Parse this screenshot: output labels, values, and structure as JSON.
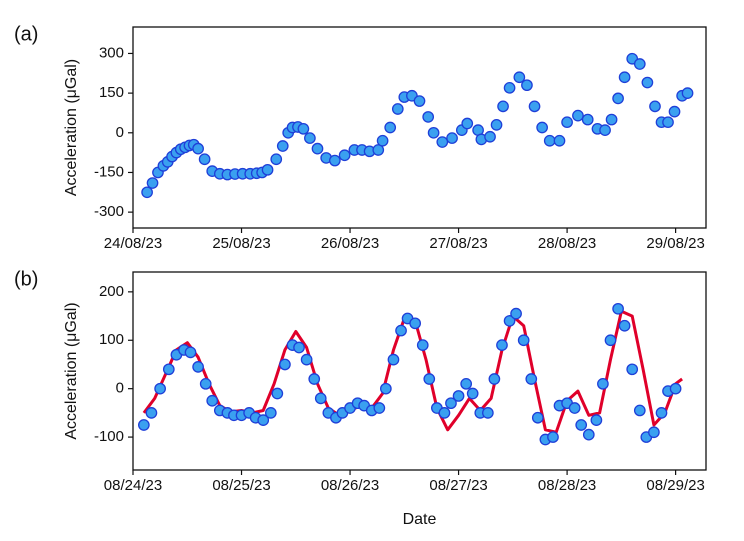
{
  "chart_data": [
    {
      "type": "scatter",
      "panel_label": "(a)",
      "y_label": "Acceleration (μGal)",
      "xlim": [
        0,
        5.28
      ],
      "ylim": [
        -360,
        400
      ],
      "xticks": [
        {
          "value": 0,
          "label": "24/08/23"
        },
        {
          "value": 1,
          "label": "25/08/23"
        },
        {
          "value": 2,
          "label": "26/08/23"
        },
        {
          "value": 3,
          "label": "27/08/23"
        },
        {
          "value": 4,
          "label": "28/08/23"
        },
        {
          "value": 5,
          "label": "29/08/23"
        }
      ],
      "yticks": [
        -300,
        -150,
        0,
        150,
        300
      ],
      "series": [
        {
          "mode": "markers",
          "color": "#3aa0f0",
          "edgecolor": "#1f3fd8",
          "x": [
            0.13,
            0.18,
            0.23,
            0.28,
            0.32,
            0.36,
            0.4,
            0.44,
            0.48,
            0.52,
            0.56,
            0.6,
            0.66,
            0.73,
            0.8,
            0.87,
            0.94,
            1.01,
            1.08,
            1.14,
            1.19,
            1.24,
            1.32,
            1.38,
            1.43,
            1.47,
            1.52,
            1.57,
            1.63,
            1.7,
            1.78,
            1.86,
            1.95,
            2.04,
            2.11,
            2.18,
            2.26,
            2.3,
            2.37,
            2.44,
            2.5,
            2.57,
            2.64,
            2.72,
            2.77,
            2.85,
            2.94,
            3.03,
            3.08,
            3.18,
            3.21,
            3.29,
            3.35,
            3.41,
            3.47,
            3.56,
            3.63,
            3.7,
            3.77,
            3.84,
            3.93,
            4.0,
            4.1,
            4.19,
            4.28,
            4.35,
            4.41,
            4.47,
            4.53,
            4.6,
            4.67,
            4.74,
            4.81,
            4.87,
            4.93,
            4.99,
            5.06,
            5.11
          ],
          "values": [
            -225,
            -190,
            -150,
            -125,
            -110,
            -90,
            -75,
            -62,
            -55,
            -48,
            -45,
            -60,
            -100,
            -145,
            -155,
            -158,
            -156,
            -155,
            -155,
            -153,
            -150,
            -140,
            -100,
            -50,
            0,
            20,
            22,
            15,
            -20,
            -60,
            -95,
            -105,
            -85,
            -65,
            -65,
            -70,
            -65,
            -30,
            20,
            90,
            135,
            140,
            120,
            60,
            0,
            -35,
            -20,
            10,
            35,
            10,
            -25,
            -15,
            30,
            100,
            170,
            210,
            180,
            100,
            20,
            -30,
            -30,
            40,
            65,
            50,
            15,
            10,
            50,
            130,
            210,
            280,
            260,
            190,
            100,
            40,
            40,
            80,
            140,
            150
          ]
        }
      ]
    },
    {
      "type": "scatter",
      "panel_label": "(b)",
      "y_label": "Acceleration (μGal)",
      "x_label": "Date",
      "xlim": [
        0,
        5.28
      ],
      "ylim": [
        -168,
        241
      ],
      "xticks": [
        {
          "value": 0,
          "label": "08/24/23"
        },
        {
          "value": 1,
          "label": "08/25/23"
        },
        {
          "value": 2,
          "label": "08/26/23"
        },
        {
          "value": 3,
          "label": "08/27/23"
        },
        {
          "value": 4,
          "label": "08/28/23"
        },
        {
          "value": 5,
          "label": "08/29/23"
        }
      ],
      "yticks": [
        -100,
        0,
        100,
        200
      ],
      "series": [
        {
          "mode": "line",
          "color": "#e0002a",
          "x": [
            0.1,
            0.2,
            0.3,
            0.4,
            0.5,
            0.6,
            0.7,
            0.8,
            0.9,
            1.0,
            1.1,
            1.2,
            1.3,
            1.4,
            1.5,
            1.6,
            1.7,
            1.8,
            1.9,
            2.0,
            2.1,
            2.2,
            2.3,
            2.4,
            2.5,
            2.6,
            2.7,
            2.8,
            2.9,
            3.0,
            3.1,
            3.2,
            3.3,
            3.4,
            3.5,
            3.6,
            3.7,
            3.8,
            3.9,
            4.0,
            4.1,
            4.2,
            4.3,
            4.4,
            4.5,
            4.6,
            4.7,
            4.8,
            4.9,
            5.0,
            5.06
          ],
          "values": [
            -50,
            -20,
            30,
            80,
            95,
            65,
            10,
            -35,
            -48,
            -45,
            -50,
            -45,
            10,
            80,
            118,
            85,
            10,
            -40,
            -55,
            -45,
            -35,
            -40,
            -10,
            80,
            145,
            140,
            60,
            -40,
            -85,
            -55,
            -20,
            -45,
            -20,
            80,
            150,
            130,
            20,
            -85,
            -90,
            -25,
            -5,
            -55,
            -50,
            60,
            160,
            150,
            40,
            -75,
            -50,
            10,
            20
          ]
        },
        {
          "mode": "markers",
          "color": "#3aa0f0",
          "edgecolor": "#1f3fd8",
          "x": [
            0.1,
            0.17,
            0.25,
            0.33,
            0.4,
            0.47,
            0.53,
            0.6,
            0.67,
            0.73,
            0.8,
            0.87,
            0.93,
            1.0,
            1.07,
            1.13,
            1.2,
            1.27,
            1.33,
            1.4,
            1.47,
            1.53,
            1.6,
            1.67,
            1.73,
            1.8,
            1.87,
            1.93,
            2.0,
            2.07,
            2.13,
            2.2,
            2.27,
            2.33,
            2.4,
            2.47,
            2.53,
            2.6,
            2.67,
            2.73,
            2.8,
            2.87,
            2.93,
            3.0,
            3.07,
            3.13,
            3.2,
            3.27,
            3.33,
            3.4,
            3.47,
            3.53,
            3.6,
            3.67,
            3.73,
            3.8,
            3.87,
            3.93,
            4.0,
            4.07,
            4.13,
            4.2,
            4.27,
            4.33,
            4.4,
            4.47,
            4.53,
            4.6,
            4.67,
            4.73,
            4.8,
            4.87,
            4.93,
            5.0
          ],
          "values": [
            -75,
            -50,
            0,
            40,
            70,
            80,
            75,
            45,
            10,
            -25,
            -45,
            -50,
            -55,
            -55,
            -50,
            -60,
            -65,
            -50,
            -10,
            50,
            90,
            85,
            60,
            20,
            -20,
            -50,
            -60,
            -50,
            -40,
            -30,
            -35,
            -45,
            -40,
            0,
            60,
            120,
            145,
            135,
            90,
            20,
            -40,
            -50,
            -30,
            -15,
            10,
            -10,
            -50,
            -50,
            20,
            90,
            140,
            155,
            100,
            20,
            -60,
            -105,
            -100,
            -35,
            -30,
            -40,
            -75,
            -95,
            -65,
            10,
            100,
            165,
            130,
            40,
            -45,
            -100,
            -90,
            -50,
            -5,
            0
          ]
        }
      ]
    }
  ]
}
